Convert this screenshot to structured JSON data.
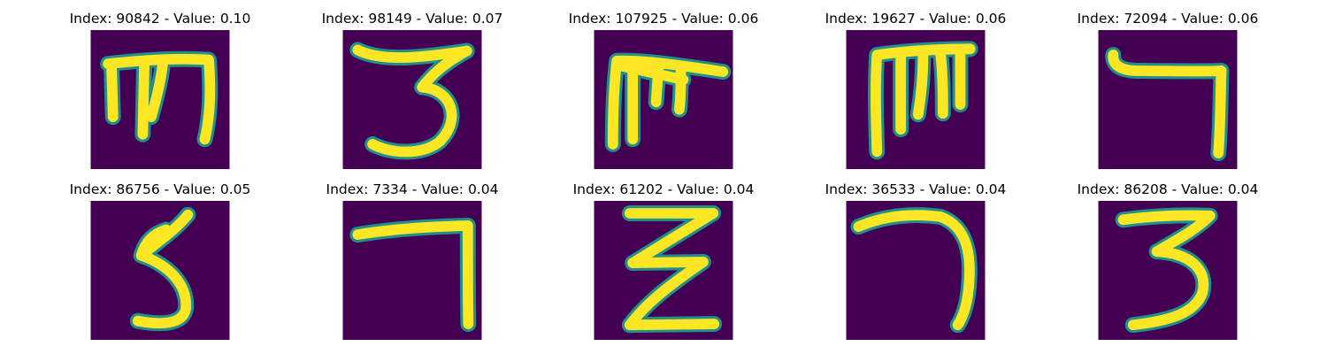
{
  "colors": {
    "background": "#440154",
    "stroke_mid": "#21908d",
    "stroke_high": "#fde725"
  },
  "panels": [
    {
      "title": "Index: 90842 - Value: 0.10",
      "glyph": "m"
    },
    {
      "title": "Index: 98149 - Value: 0.07",
      "glyph": "3"
    },
    {
      "title": "Index: 107925 - Value: 0.06",
      "glyph": "m-bold"
    },
    {
      "title": "Index: 19627 - Value: 0.06",
      "glyph": "m-tall"
    },
    {
      "title": "Index: 72094 - Value: 0.06",
      "glyph": "7"
    },
    {
      "title": "Index: 86756 - Value: 0.05",
      "glyph": "5"
    },
    {
      "title": "Index: 7334 - Value: 0.04",
      "glyph": "7-corner"
    },
    {
      "title": "Index: 61202 - Value: 0.04",
      "glyph": "z"
    },
    {
      "title": "Index: 36533 - Value: 0.04",
      "glyph": "7-curve"
    },
    {
      "title": "Index: 86208 - Value: 0.04",
      "glyph": "3-b"
    }
  ]
}
